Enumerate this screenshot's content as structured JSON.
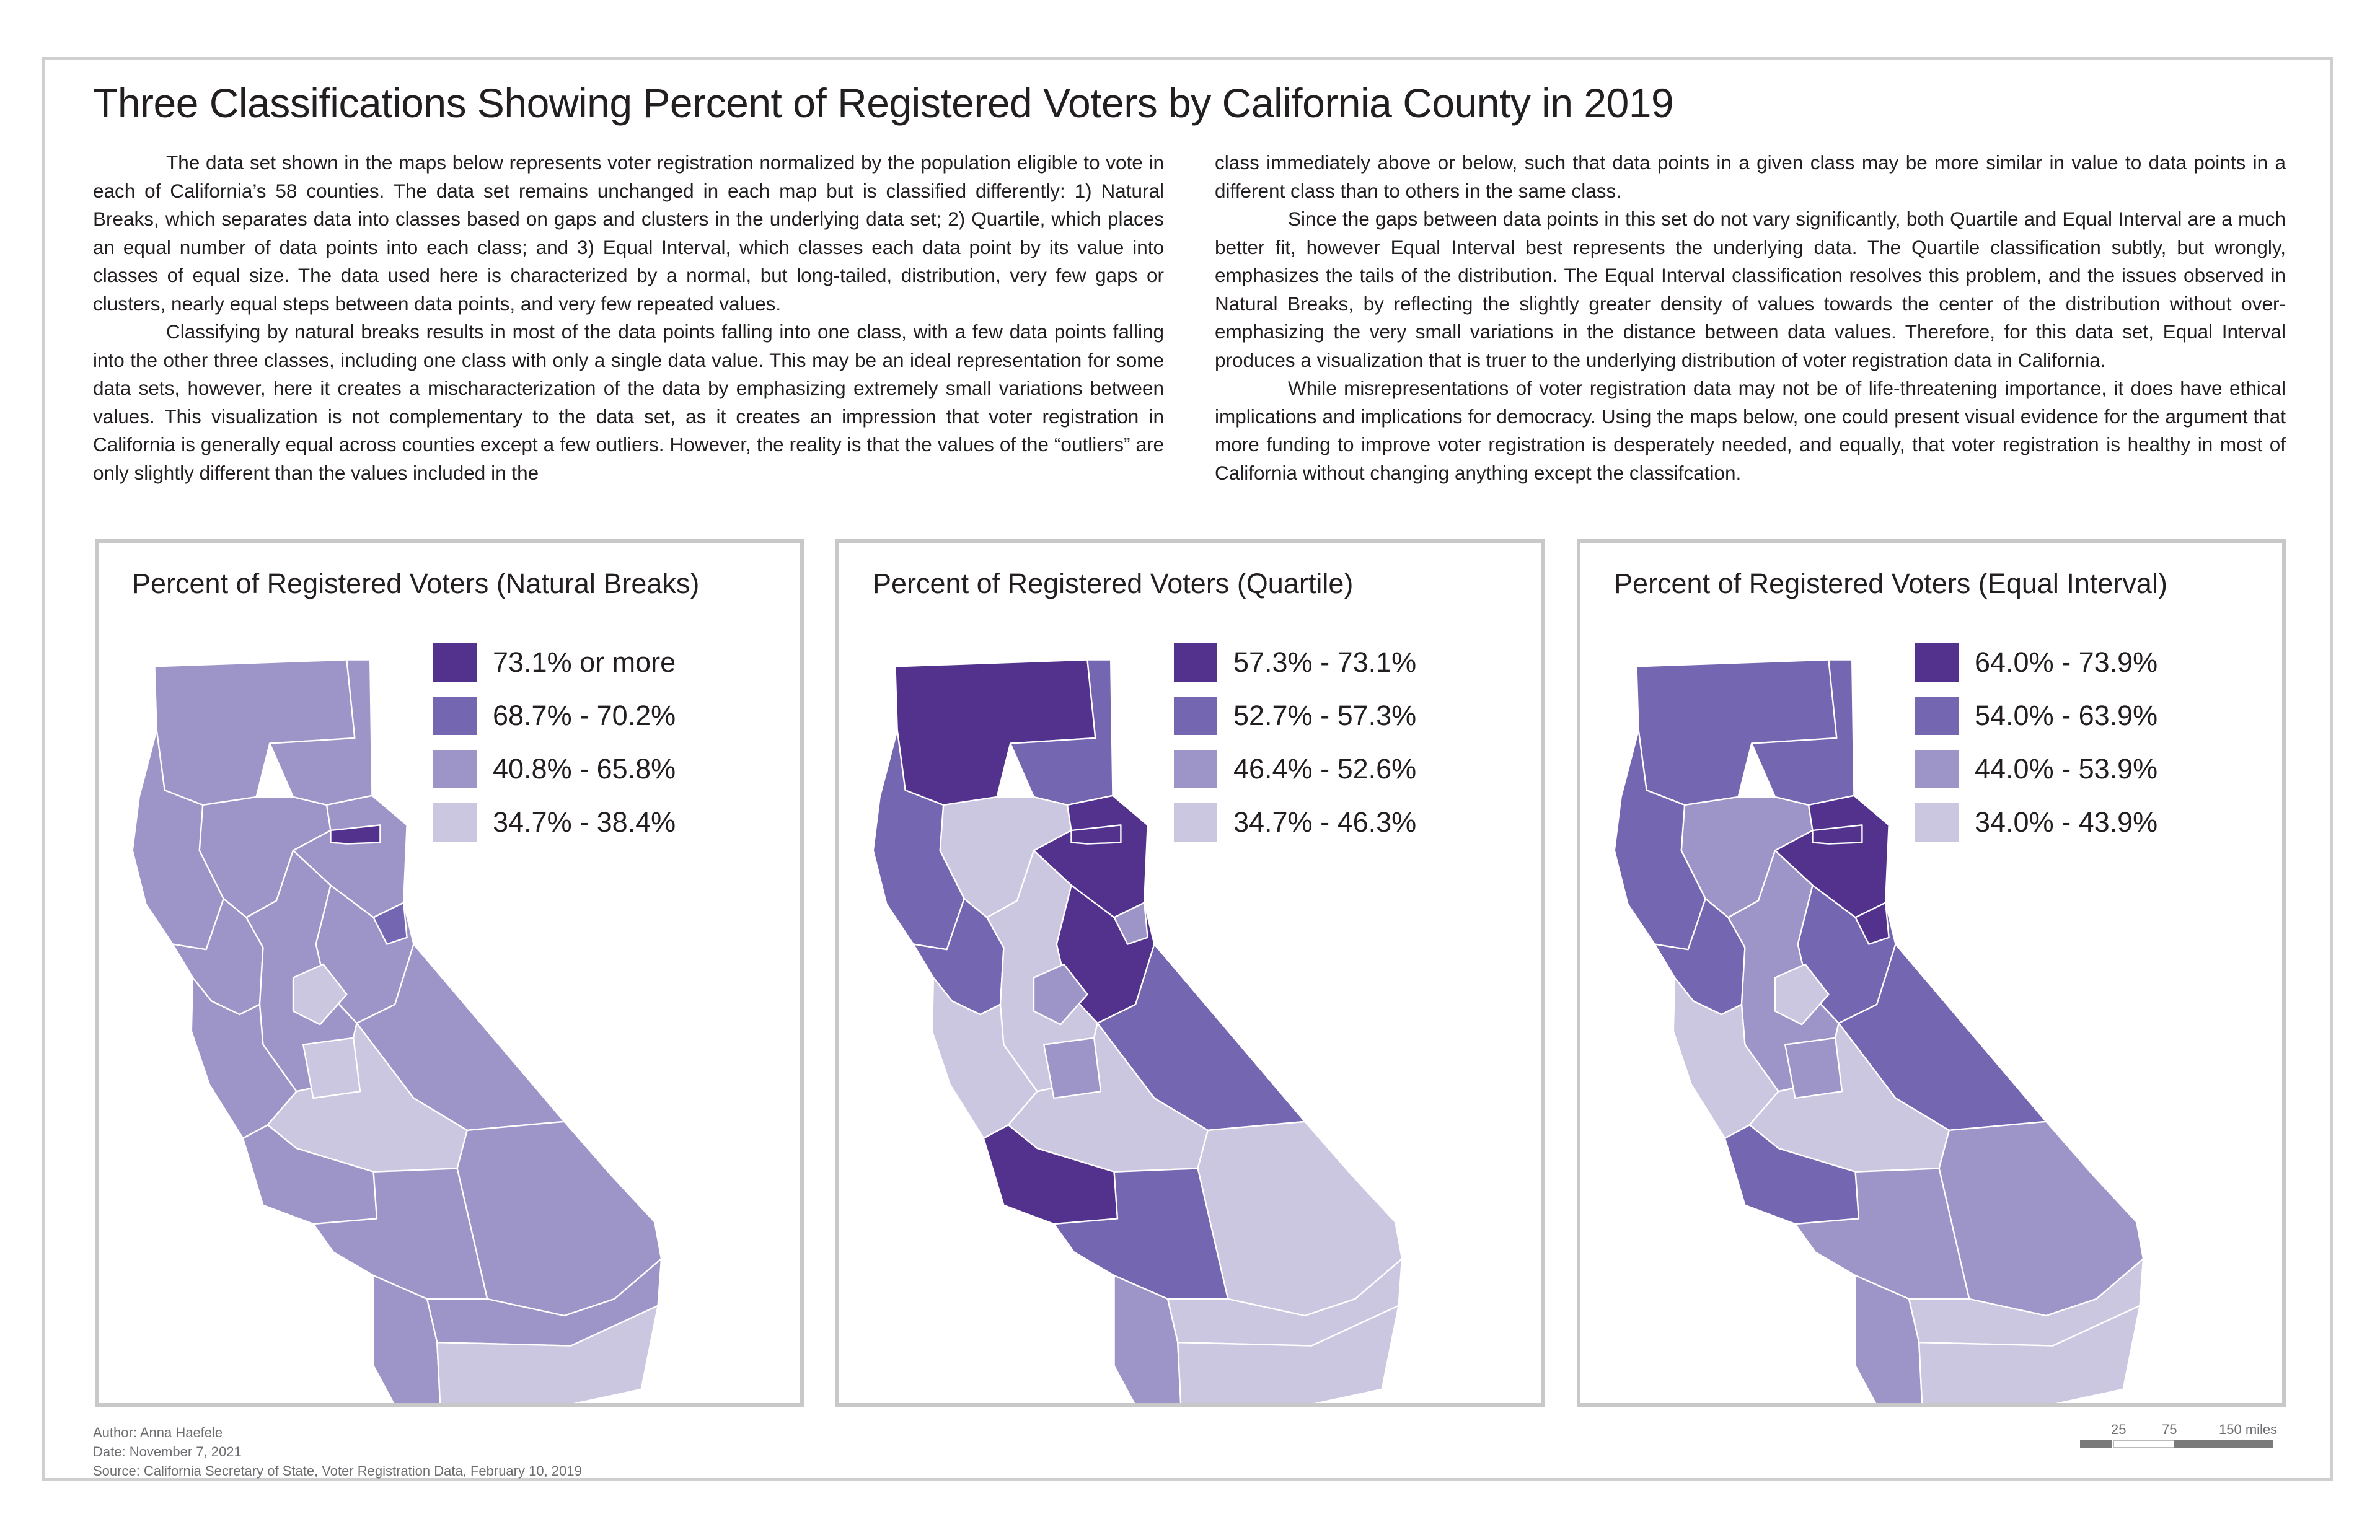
{
  "title": "Three Classifications Showing Percent of Registered Voters by California County in 2019",
  "essay": {
    "left_p1": "The data set shown in the maps below represents voter registration normalized by the population eligible to vote in each of California’s 58 counties. The data set remains unchanged in each map but is classified differently: 1) Natural Breaks, which separates data into classes based on gaps and clusters in the underlying data set; 2) Quartile, which places an equal number of data points into each class; and 3) Equal Interval, which classes each data point by its value into classes of equal size. The data used here is characterized by a normal, but long-tailed, distribution, very few gaps or clusters, nearly equal steps between data points, and very few repeated values.",
    "left_p2": "Classifying by natural breaks results in most of the data points falling into one class, with a few data points falling into the other three classes, including one class with only a single data value. This may be an ideal representation for some data sets, however, here it creates a mischaracterization of the data by emphasizing extremely small variations between values. This visualization is not complementary to the data set, as it creates an impression that voter registration in California is generally equal across counties except a few outliers. However, the reality is that the values of the “outliers” are only slightly different than the values included in the",
    "right_p1": "class immediately above or below, such that data points in a given class may be more similar in value to data points in a different class than to others in the same class.",
    "right_p2": "Since the gaps between data points in this set do not vary significantly, both Quartile and Equal Interval are a much better fit, however Equal Interval best represents the underlying data. The Quartile classification subtly, but wrongly, emphasizes the tails of the distribution. The Equal Interval classification resolves this problem, and the issues observed in Natural Breaks, by reflecting the slightly greater density of values towards the center of the distribution without over-emphasizing the very small variations in the distance between data values. Therefore, for this data set, Equal Interval produces a visualization that is truer to the underlying distribution of voter registration data in California.",
    "right_p3": "While misrepresentations of voter registration data may not be of life-threatening importance, it does have ethical implications and implications for democracy. Using the maps below, one could present visual evidence for the argument that more funding to improve voter registration is desperately needed, and equally, that voter registration is healthy in most of California without changing anything except the classifcation."
  },
  "colors": {
    "class1": "#52328c",
    "class2": "#7466b0",
    "class3": "#9d95c8",
    "class4": "#cbc7e1",
    "border": "#ffffff",
    "frame": "#c8c8c8"
  },
  "maps": [
    {
      "title": "Percent of Registered Voters (Natural Breaks)",
      "legend": [
        "73.1% or more",
        "68.7% - 70.2%",
        "40.8% - 65.8%",
        "34.7% - 38.4%"
      ],
      "regions": {
        "far_north": 3,
        "north_coast": 3,
        "northeast": 3,
        "sacramento_valley": 3,
        "sierra_north": 3,
        "sierra_central": 3,
        "bay_area": 3,
        "central_valley": 3,
        "central_coast": 3,
        "inyo": 3,
        "kern": 4,
        "san_bernardino": 3,
        "socal_coast": 3,
        "los_angeles": 3,
        "riverside": 3,
        "san_diego": 3,
        "imperial": 4,
        "accent_a": 1,
        "accent_b": 2,
        "accent_c": 4,
        "accent_d": 4
      }
    },
    {
      "title": "Percent of Registered Voters (Quartile)",
      "legend": [
        "57.3% - 73.1%",
        "52.7% - 57.3%",
        "46.4% - 52.6%",
        "34.7% - 46.3%"
      ],
      "regions": {
        "far_north": 1,
        "north_coast": 2,
        "northeast": 2,
        "sacramento_valley": 4,
        "sierra_north": 1,
        "sierra_central": 1,
        "bay_area": 2,
        "central_valley": 4,
        "central_coast": 4,
        "inyo": 2,
        "kern": 4,
        "san_bernardino": 4,
        "socal_coast": 1,
        "los_angeles": 2,
        "riverside": 4,
        "san_diego": 3,
        "imperial": 4,
        "accent_a": 1,
        "accent_b": 3,
        "accent_c": 3,
        "accent_d": 3
      }
    },
    {
      "title": "Percent of Registered Voters (Equal Interval)",
      "legend": [
        "64.0% - 73.9%",
        "54.0% - 63.9%",
        "44.0% - 53.9%",
        "34.0% - 43.9%"
      ],
      "regions": {
        "far_north": 2,
        "north_coast": 2,
        "northeast": 2,
        "sacramento_valley": 3,
        "sierra_north": 1,
        "sierra_central": 2,
        "bay_area": 2,
        "central_valley": 3,
        "central_coast": 4,
        "inyo": 2,
        "kern": 4,
        "san_bernardino": 3,
        "socal_coast": 2,
        "los_angeles": 3,
        "riverside": 4,
        "san_diego": 3,
        "imperial": 4,
        "accent_a": 1,
        "accent_b": 1,
        "accent_c": 4,
        "accent_d": 3
      }
    }
  ],
  "footer": {
    "author": "Author: Anna Haefele",
    "date": "Date: November 7, 2021",
    "source": "Source: California Secretary of State, Voter Registration Data, February 10, 2019"
  },
  "scale": {
    "labels": [
      "25",
      "75",
      "150 miles"
    ]
  }
}
